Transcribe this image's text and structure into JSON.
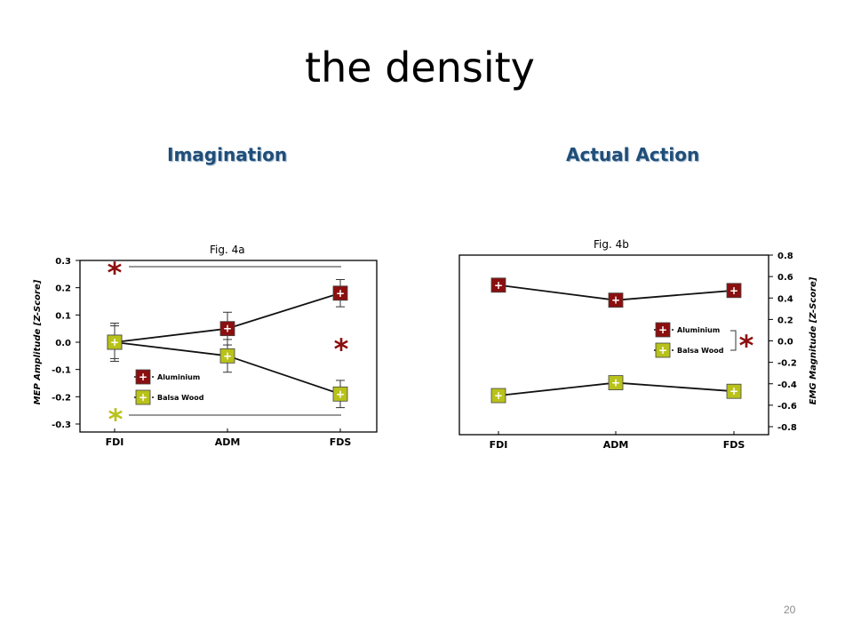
{
  "slide": {
    "title": "the density",
    "page_number": "20"
  },
  "headings": {
    "left": "Imagination",
    "right": "Actual Action"
  },
  "colors": {
    "aluminium": "#8b0f0f",
    "balsa": "#b8c21a",
    "heading": "#1f4e79"
  },
  "chart_data": [
    {
      "type": "line",
      "title": "Fig. 4a",
      "categories": [
        "FDI",
        "ADM",
        "FDS"
      ],
      "ylabel": "MEP Amplitude [Z-Score]",
      "ylim": [
        -0.3,
        0.3
      ],
      "yticks": [
        "0.3",
        "0.2",
        "0.1",
        "0.0",
        "-0.1",
        "-0.2",
        "-0.3"
      ],
      "series": [
        {
          "name": "Aluminium",
          "values": [
            0.0,
            0.05,
            0.18
          ],
          "errors": [
            0.06,
            0.06,
            0.05
          ]
        },
        {
          "name": "Balsa Wood",
          "values": [
            0.0,
            -0.05,
            -0.19
          ],
          "errors": [
            0.07,
            0.06,
            0.05
          ]
        }
      ],
      "significance": [
        "*",
        "*",
        "*"
      ],
      "legend": "center-left",
      "grid": false
    },
    {
      "type": "line",
      "title": "Fig. 4b",
      "categories": [
        "FDI",
        "ADM",
        "FDS"
      ],
      "ylabel": "EMG Magnitude [Z-Score]",
      "ylim": [
        -0.8,
        0.8
      ],
      "yticks": [
        "0.8",
        "0.6",
        "0.4",
        "0.2",
        "0.0",
        "-0.2",
        "-0.4",
        "-0.6",
        "-0.8"
      ],
      "series": [
        {
          "name": "Aluminium",
          "values": [
            0.52,
            0.38,
            0.47
          ]
        },
        {
          "name": "Balsa Wood",
          "values": [
            -0.51,
            -0.39,
            -0.47
          ]
        }
      ],
      "significance": [
        "*"
      ],
      "legend": "right",
      "grid": false
    }
  ]
}
